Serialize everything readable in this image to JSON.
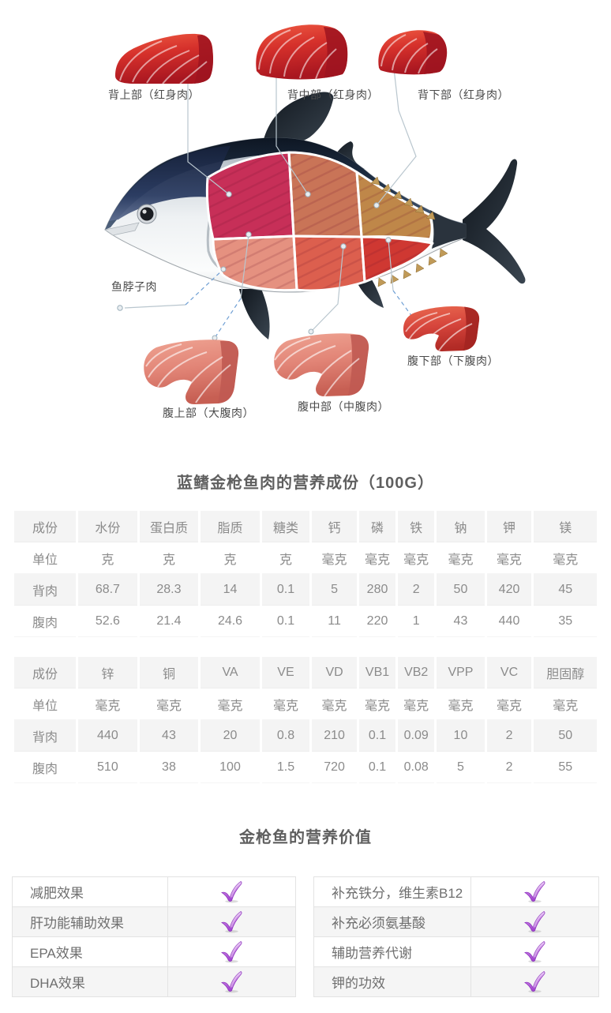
{
  "diagram": {
    "labels": {
      "back_upper": "背上部（红身肉）",
      "back_middle": "背中部（红身肉）",
      "back_lower": "背下部（红身肉）",
      "neck": "鱼脖子肉",
      "belly_upper": "腹上部（大腹肉）",
      "belly_middle": "腹中部（中腹肉）",
      "belly_lower": "腹下部（下腹肉）"
    }
  },
  "nutrition": {
    "title": "蓝鳍金枪鱼肉的营养成份（100G）",
    "table1": {
      "headers": [
        "成份",
        "水份",
        "蛋白质",
        "脂质",
        "糖类",
        "钙",
        "磷",
        "铁",
        "钠",
        "钾",
        "镁"
      ],
      "rows": [
        [
          "单位",
          "克",
          "克",
          "克",
          "克",
          "毫克",
          "毫克",
          "毫克",
          "毫克",
          "毫克",
          "毫克"
        ],
        [
          "背肉",
          "68.7",
          "28.3",
          "14",
          "0.1",
          "5",
          "280",
          "2",
          "50",
          "420",
          "45"
        ],
        [
          "腹肉",
          "52.6",
          "21.4",
          "24.6",
          "0.1",
          "11",
          "220",
          "1",
          "43",
          "440",
          "35"
        ]
      ]
    },
    "table2": {
      "headers": [
        "成份",
        "锌",
        "铜",
        "VA",
        "VE",
        "VD",
        "VB1",
        "VB2",
        "VPP",
        "VC",
        "胆固醇"
      ],
      "rows": [
        [
          "单位",
          "毫克",
          "毫克",
          "毫克",
          "毫克",
          "毫克",
          "毫克",
          "毫克",
          "毫克",
          "毫克",
          "毫克"
        ],
        [
          "背肉",
          "440",
          "43",
          "20",
          "0.8",
          "210",
          "0.1",
          "0.09",
          "10",
          "2",
          "50"
        ],
        [
          "腹肉",
          "510",
          "38",
          "100",
          "1.5",
          "720",
          "0.1",
          "0.08",
          "5",
          "2",
          "55"
        ]
      ]
    }
  },
  "benefits": {
    "title": "金枪鱼的营养价值",
    "left": [
      "减肥效果",
      "肝功能辅助效果",
      "EPA效果",
      "DHA效果"
    ],
    "right": [
      "补充铁分，维生素B12",
      "补充必须氨基酸",
      "辅助营养代谢",
      "钾的功效"
    ]
  },
  "colors": {
    "check_purple": "#9c3ccc",
    "cut_back_upper": "#c72f58",
    "cut_back_middle": "#c97457",
    "cut_back_lower": "#bf8749",
    "cut_belly_upper": "#e59180",
    "cut_belly_middle": "#dc5f4e",
    "cut_belly_lower": "#cf3832",
    "table_stripe": "#f4f4f4"
  }
}
